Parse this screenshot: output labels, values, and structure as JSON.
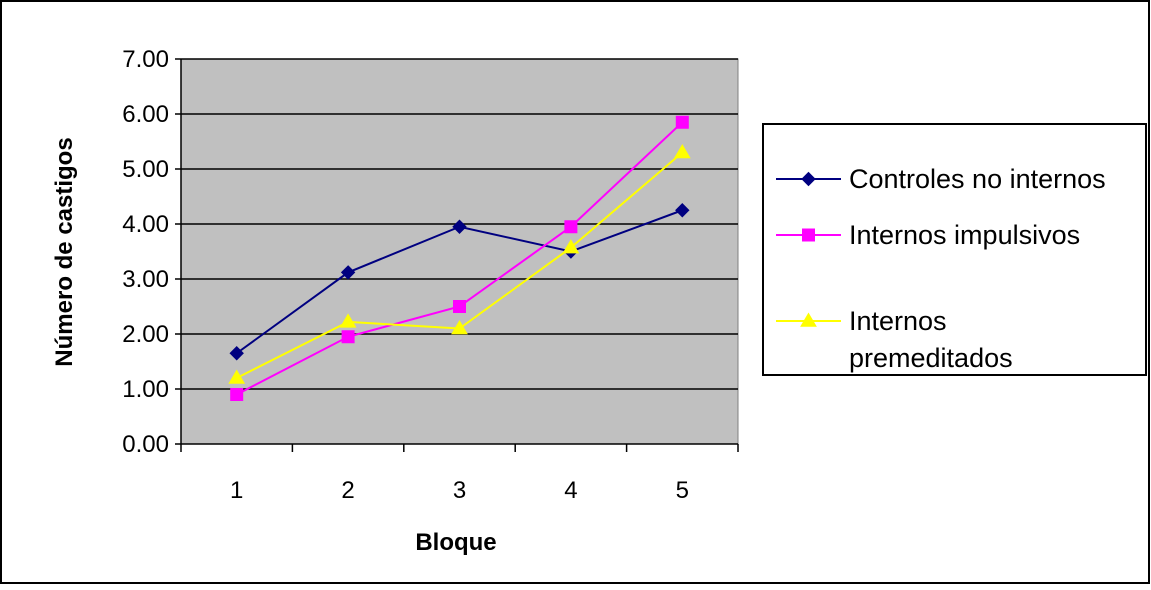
{
  "chart_data": {
    "type": "line",
    "title": "",
    "xlabel": "Bloque",
    "ylabel": "Número de castigos",
    "categories": [
      "1",
      "2",
      "3",
      "4",
      "5"
    ],
    "ylim": [
      0,
      7
    ],
    "yticks": [
      "0.00",
      "1.00",
      "2.00",
      "3.00",
      "4.00",
      "5.00",
      "6.00",
      "7.00"
    ],
    "grid": true,
    "legend_position": "right",
    "plot_background": "#c0c0c0",
    "series": [
      {
        "name": "Controles no internos",
        "values": [
          1.65,
          3.12,
          3.95,
          3.5,
          4.25
        ],
        "color": "#000080",
        "marker": "diamond"
      },
      {
        "name": "Internos impulsivos",
        "values": [
          0.9,
          1.95,
          2.5,
          3.95,
          5.85
        ],
        "color": "#ff00ff",
        "marker": "square"
      },
      {
        "name": "Internos premeditados",
        "values": [
          1.2,
          2.22,
          2.1,
          3.57,
          5.3
        ],
        "color": "#ffff00",
        "marker": "triangle"
      }
    ]
  },
  "legend": {
    "items": [
      {
        "lines": [
          "Controles no internos"
        ]
      },
      {
        "lines": [
          "Internos impulsivos"
        ]
      },
      {
        "lines": [
          "Internos",
          "premeditados"
        ]
      }
    ]
  }
}
